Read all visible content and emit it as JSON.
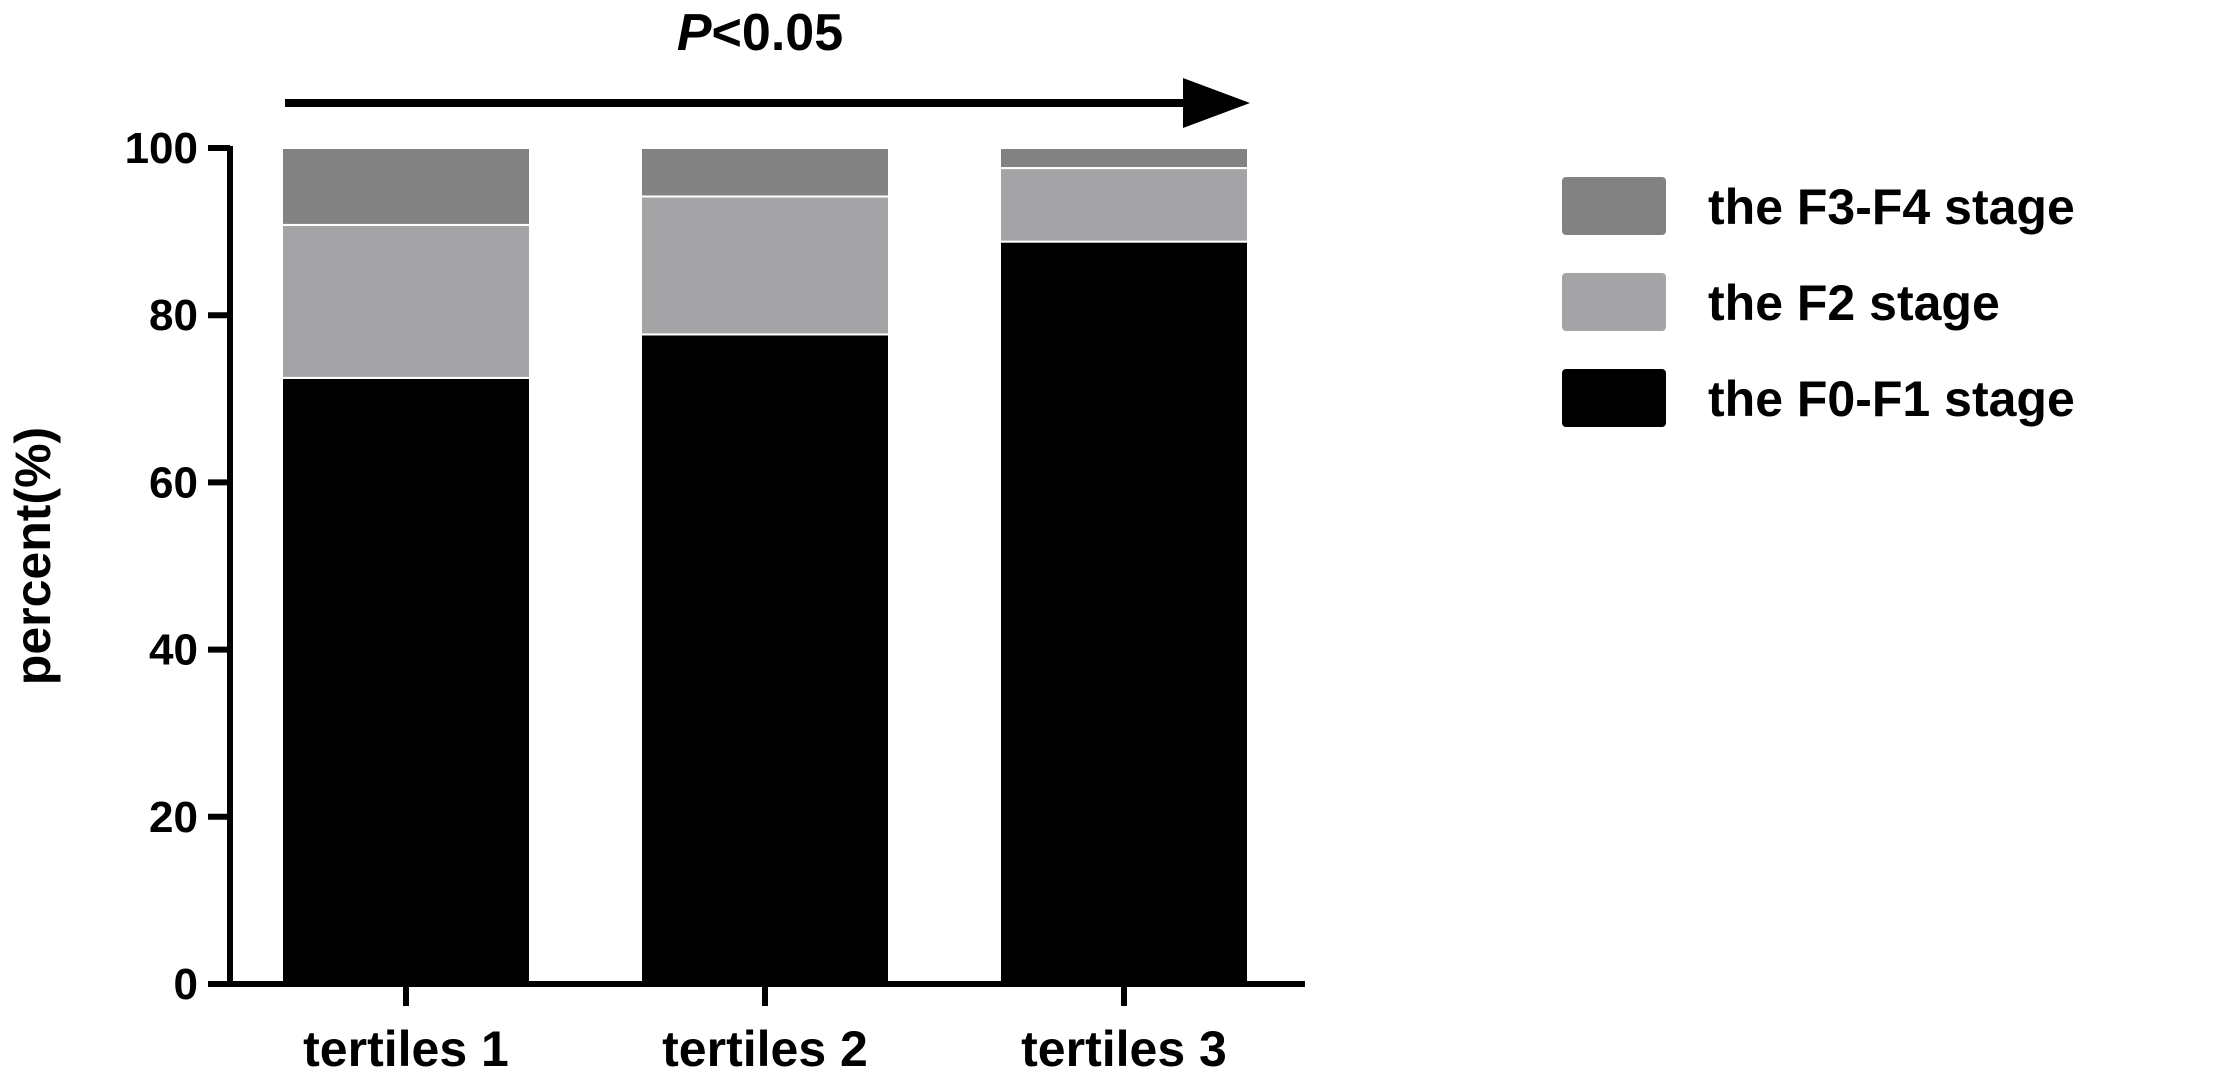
{
  "chart_data": {
    "type": "bar",
    "stacked": true,
    "categories": [
      "tertiles 1",
      "tertiles 2",
      "tertiles 3"
    ],
    "series": [
      {
        "name": "the F0-F1 stage",
        "values": [
          72.5,
          77.7,
          88.8
        ],
        "color": "#000000"
      },
      {
        "name": "the F2 stage",
        "values": [
          18.3,
          16.5,
          8.8
        ],
        "color": "#a4a4a6"
      },
      {
        "name": "the F3-F4 stage",
        "values": [
          9.2,
          5.8,
          2.4
        ],
        "color": "#828282"
      }
    ],
    "ylabel": "percent(%)",
    "xlabel": "",
    "ylim": [
      0,
      100
    ],
    "yticks": [
      0,
      20,
      40,
      60,
      80,
      100
    ],
    "grid": false,
    "legend_placement": "right",
    "annotation": {
      "italic": "P",
      "rest": "<0.05"
    }
  }
}
